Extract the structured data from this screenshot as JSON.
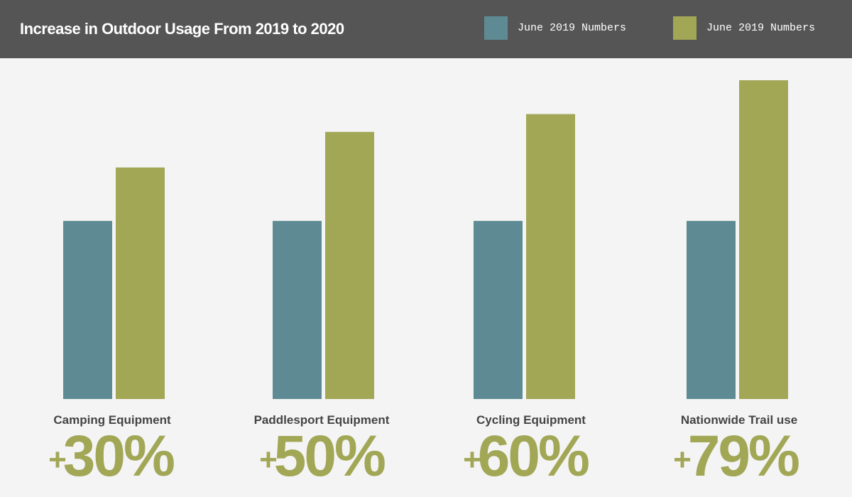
{
  "chart_data": {
    "type": "bar",
    "title": "Increase in Outdoor Usage From 2019 to 2020",
    "categories": [
      "Camping Equipment",
      "Paddlesport Equipment",
      "Cycling Equipment",
      "Nationwide Trail use"
    ],
    "series": [
      {
        "name": "June 2019 Numbers",
        "color": "#5e8b93",
        "values": [
          100,
          100,
          100,
          100
        ]
      },
      {
        "name": "June 2019 Numbers",
        "color": "#a2a756",
        "values": [
          130,
          150,
          160,
          179
        ]
      }
    ],
    "increase_labels": [
      {
        "sign": "+",
        "value": "30%"
      },
      {
        "sign": "+",
        "value": "50%"
      },
      {
        "sign": "+",
        "value": "60%"
      },
      {
        "sign": "+",
        "value": "79%"
      }
    ],
    "ylim": [
      0,
      179
    ],
    "grid": false,
    "legend_position": "top-right",
    "xlabel": "",
    "ylabel": ""
  }
}
